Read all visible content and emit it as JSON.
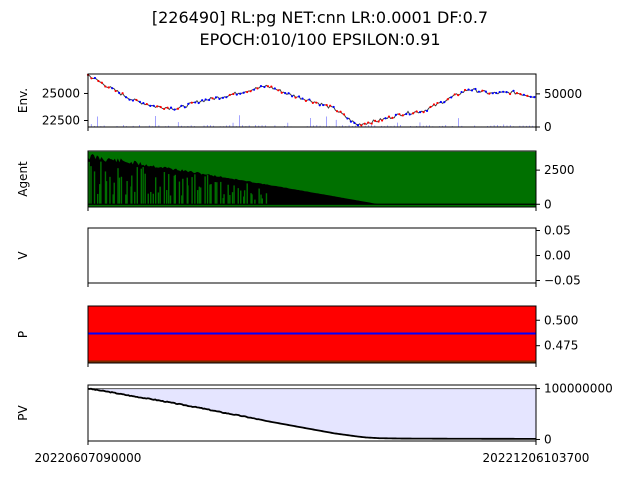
{
  "title_line1": "[226490] RL:pg NET:cnn LR:0.0001 DF:0.7",
  "title_line2": "EPOCH:010/100 EPSILON:0.91",
  "colors": {
    "buy": "#ff0000",
    "sell": "#0000ff",
    "agent_fill": "#007000",
    "holding": "#000000",
    "policy_bg": "#ff0000",
    "policy_line": "#0000ff",
    "pv_fill": "#e5e5ff",
    "pv_line": "#000000",
    "volume": "#0000ff"
  },
  "x_tick_labels": [
    "20220607090000",
    "20221206103700"
  ],
  "chart_data": [
    {
      "name": "env",
      "type": "line",
      "ylabel": "Env.",
      "left_ticks": [
        "25000",
        "22500"
      ],
      "left_tick_values": [
        25000,
        22500
      ],
      "right_ticks": [
        "50000",
        "0"
      ],
      "right_tick_values": [
        50000,
        0
      ],
      "price_range": [
        21900,
        26800
      ],
      "volume_range": [
        0,
        80000
      ],
      "price_x": [
        0,
        0.05,
        0.1,
        0.15,
        0.2,
        0.25,
        0.3,
        0.35,
        0.4,
        0.45,
        0.5,
        0.55,
        0.6,
        0.65,
        0.7,
        0.75,
        0.8,
        0.85,
        0.9,
        0.95,
        1.0
      ],
      "price_values": [
        26700,
        25500,
        24400,
        23800,
        23600,
        24300,
        24700,
        25200,
        25700,
        24900,
        24300,
        23600,
        22100,
        22500,
        23100,
        23400,
        24400,
        25400,
        25000,
        25100,
        24700
      ]
    },
    {
      "name": "agent",
      "type": "area",
      "ylabel": "Agent",
      "right_ticks": [
        "2500",
        "0"
      ],
      "right_tick_values": [
        2500,
        0
      ],
      "y_range": [
        -200,
        3900
      ],
      "upper_value": 3850,
      "holding_start": 3800,
      "holding_zero_at": 0.65
    },
    {
      "name": "value",
      "type": "line",
      "ylabel": "V",
      "right_ticks": [
        "0.05",
        "0.00",
        "−0.05"
      ],
      "right_tick_values": [
        0.05,
        0.0,
        -0.05
      ],
      "y_range": [
        -0.055,
        0.055
      ]
    },
    {
      "name": "policy",
      "type": "line",
      "ylabel": "P",
      "right_ticks": [
        "0.500",
        "0.475"
      ],
      "right_tick_values": [
        0.5,
        0.475
      ],
      "y_range": [
        0.458,
        0.514
      ],
      "policy_value": 0.487,
      "lower_band_top": 0.4605
    },
    {
      "name": "pv",
      "type": "area",
      "ylabel": "PV",
      "right_ticks": [
        "100000000",
        "0"
      ],
      "right_tick_values": [
        100000000,
        0
      ],
      "y_range": [
        -3000000,
        107000000
      ],
      "initial_value": 100000000,
      "pv_x": [
        0,
        0.05,
        0.1,
        0.15,
        0.2,
        0.25,
        0.3,
        0.35,
        0.4,
        0.45,
        0.5,
        0.55,
        0.6,
        0.62,
        0.65,
        0.7,
        0.8,
        0.9,
        1.0
      ],
      "pv_values": [
        100000000,
        93000000,
        85000000,
        78000000,
        70000000,
        62000000,
        53000000,
        45000000,
        36000000,
        28000000,
        20000000,
        12000000,
        6000000,
        4000000,
        2500000,
        1800000,
        1500000,
        1300000,
        1200000
      ]
    }
  ]
}
